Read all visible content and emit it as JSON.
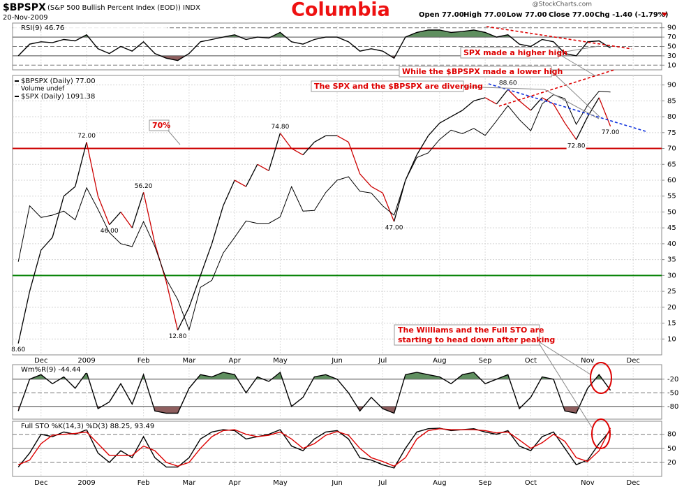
{
  "header": {
    "symbol": "$BPSPX",
    "name": "(S&P 500 Bullish Percent Index (EOD))",
    "exchange": "INDX",
    "date": "20-Nov-2009",
    "title": "Columbia",
    "open": "Open 77.00",
    "high": "High 77.00",
    "low": "Low 77.00",
    "close": "Close 77.00",
    "change": "Chg -1.40 (-1.79%)",
    "copyright": "@StockCharts.com"
  },
  "annotations": {
    "higher_high": "SPX made a higher high",
    "lower_high": "While the $BPSPX made a lower high",
    "diverging": "The SPX and the $BPSPX are diverging",
    "level": "70%",
    "oscillators_1": "The Williams and the Full STO are",
    "oscillators_2": "starting to head down after peaking"
  },
  "chart_data": [
    {
      "type": "line",
      "ylim": [
        0,
        100
      ],
      "yticks": [
        10,
        30,
        50,
        70,
        90
      ],
      "fill_above": {
        "value": 70,
        "color": "#5f8f5f"
      },
      "fill_below": {
        "value": 30,
        "color": "#8f5f5f"
      },
      "series": [
        {
          "name": "RSI(9) 46.76",
          "color": "#000000",
          "values": [
            30,
            55,
            60,
            58,
            65,
            62,
            75,
            45,
            35,
            50,
            40,
            60,
            35,
            25,
            20,
            35,
            60,
            65,
            70,
            75,
            65,
            70,
            68,
            80,
            60,
            55,
            65,
            70,
            70,
            60,
            40,
            45,
            40,
            25,
            70,
            80,
            85,
            85,
            80,
            82,
            85,
            80,
            70,
            75,
            55,
            50,
            65,
            60,
            35,
            30,
            60,
            62,
            46.76,
            null,
            null,
            null,
            null
          ]
        }
      ]
    },
    {
      "type": "line",
      "ylim": [
        5,
        93
      ],
      "yticks": [
        10,
        15,
        20,
        25,
        30,
        35,
        40,
        45,
        50,
        55,
        60,
        65,
        70,
        75,
        80,
        85,
        90
      ],
      "grid": true,
      "volume_label": "Volume undef",
      "down_color": "#cc0000",
      "hlines": [
        {
          "value": 70,
          "color": "#cc0000"
        },
        {
          "value": 30,
          "color": "#008000"
        }
      ],
      "categories": [
        null,
        null,
        "Dec",
        null,
        null,
        null,
        "2009",
        null,
        null,
        null,
        null,
        "Feb",
        null,
        null,
        null,
        "Mar",
        null,
        null,
        null,
        "Apr",
        null,
        null,
        null,
        "May",
        null,
        null,
        null,
        null,
        "Jun",
        null,
        null,
        null,
        "Jul",
        null,
        null,
        null,
        null,
        "Aug",
        null,
        null,
        null,
        "Sep",
        null,
        null,
        null,
        "Oct",
        null,
        null,
        null,
        null,
        "Nov",
        null,
        null,
        null,
        "Dec",
        null,
        null
      ],
      "y2lim": [
        640,
        1120
      ],
      "series": [
        {
          "name": "$BPSPX (Daily) 77.00",
          "color": "#000000",
          "values": [
            8.6,
            25,
            38,
            42,
            55,
            58,
            72,
            55,
            46,
            50,
            45,
            56.2,
            40,
            28,
            12.8,
            20,
            30,
            40,
            52,
            60,
            58,
            65,
            63,
            74.8,
            70,
            68,
            72,
            74,
            74,
            72,
            62,
            58,
            56,
            47,
            60,
            68,
            74,
            78,
            80,
            82,
            85,
            86,
            84,
            88.6,
            85,
            82,
            86,
            84,
            78,
            72.8,
            80,
            86,
            77,
            null,
            null,
            null,
            null
          ],
          "value_labels": [
            "8.60",
            null,
            null,
            null,
            null,
            null,
            "72.00",
            null,
            "46.00",
            null,
            null,
            "56.20",
            null,
            null,
            "12.80",
            null,
            null,
            null,
            null,
            null,
            null,
            null,
            null,
            "74.80",
            null,
            null,
            null,
            null,
            null,
            null,
            null,
            null,
            null,
            "47.00",
            null,
            null,
            null,
            null,
            null,
            null,
            null,
            null,
            null,
            "88.60",
            null,
            null,
            null,
            null,
            null,
            "72.80",
            null,
            null,
            "77.00",
            null,
            null,
            null,
            null
          ]
        },
        {
          "name": "$SPX (Daily) 1091.38",
          "color": "#000000",
          "axis": "y2",
          "values": [
            800,
            896,
            876,
            880,
            887,
            872,
            927,
            890,
            850,
            831,
            826,
            869,
            826,
            770,
            735,
            683,
            756,
            768,
            815,
            842,
            870,
            866,
            866,
            877,
            929,
            887,
            888,
            919,
            940,
            946,
            921,
            918,
            896,
            880,
            940,
            979,
            987,
            1010,
            1026,
            1020,
            1029,
            1017,
            1042,
            1068,
            1044,
            1025,
            1071,
            1087,
            1080,
            1036,
            1069,
            1093,
            1091.38,
            null,
            null,
            null,
            null
          ]
        }
      ]
    },
    {
      "type": "line",
      "ylim": [
        -108,
        12
      ],
      "yticks": [
        -20,
        -50,
        -80
      ],
      "fill_above": {
        "value": -20,
        "color": "#5f8f5f"
      },
      "fill_below": {
        "value": -80,
        "color": "#8f5f5f"
      },
      "series": [
        {
          "name": "Wm%R(9) -44.44",
          "color": "#000000",
          "values": [
            -90,
            -20,
            -10,
            -30,
            -15,
            -40,
            -5,
            -85,
            -70,
            -30,
            -75,
            -10,
            -90,
            -95,
            -95,
            -40,
            -10,
            -15,
            -5,
            -10,
            -50,
            -15,
            -25,
            -5,
            -80,
            -60,
            -15,
            -10,
            -20,
            -50,
            -90,
            -60,
            -85,
            -95,
            -10,
            -5,
            -10,
            -15,
            -30,
            -10,
            -5,
            -30,
            -20,
            -10,
            -85,
            -60,
            -15,
            -20,
            -90,
            -95,
            -40,
            -10,
            -44.44,
            null,
            null,
            null,
            null
          ]
        }
      ]
    },
    {
      "type": "line",
      "ylim": [
        -10,
        108
      ],
      "yticks": [
        20,
        50,
        80
      ],
      "label": "Full STO %K(14,3) %D(3) 88.25, 93.49",
      "categories": [
        null,
        null,
        "Dec",
        null,
        null,
        null,
        "2009",
        null,
        null,
        null,
        null,
        "Feb",
        null,
        null,
        null,
        "Mar",
        null,
        null,
        null,
        "Apr",
        null,
        null,
        null,
        "May",
        null,
        null,
        null,
        null,
        "Jun",
        null,
        null,
        null,
        "Jul",
        null,
        null,
        null,
        null,
        "Aug",
        null,
        null,
        null,
        "Sep",
        null,
        null,
        null,
        "Oct",
        null,
        null,
        null,
        null,
        "Nov",
        null,
        null,
        null,
        "Dec",
        null,
        null
      ],
      "series": [
        {
          "name": "%K",
          "color": "#000000",
          "values": [
            10,
            40,
            80,
            75,
            85,
            80,
            90,
            40,
            20,
            45,
            30,
            75,
            30,
            10,
            10,
            30,
            70,
            85,
            90,
            88,
            70,
            75,
            80,
            90,
            55,
            45,
            70,
            85,
            88,
            70,
            30,
            25,
            15,
            8,
            50,
            85,
            92,
            93,
            88,
            90,
            92,
            85,
            80,
            88,
            55,
            45,
            75,
            85,
            50,
            15,
            25,
            60,
            88.25,
            null,
            null,
            null,
            null
          ]
        },
        {
          "name": "%D",
          "color": "#dd0000",
          "values": [
            15,
            25,
            60,
            78,
            80,
            82,
            85,
            60,
            35,
            35,
            35,
            55,
            45,
            20,
            12,
            20,
            50,
            75,
            88,
            90,
            80,
            75,
            78,
            85,
            70,
            50,
            60,
            78,
            86,
            78,
            50,
            30,
            22,
            12,
            30,
            70,
            88,
            92,
            90,
            90,
            90,
            88,
            83,
            85,
            68,
            50,
            62,
            80,
            65,
            30,
            22,
            45,
            93.49,
            null,
            null,
            null,
            null
          ]
        }
      ]
    }
  ]
}
